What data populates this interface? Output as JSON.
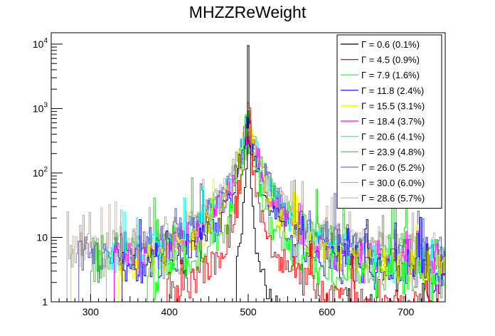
{
  "chart_data": {
    "type": "line",
    "title": "MHZZReWeight",
    "xlabel": "",
    "ylabel": "",
    "xlim": [
      250,
      750
    ],
    "ylim": [
      1,
      15000
    ],
    "yscale": "log",
    "grid": false,
    "legend_position": "top-right",
    "x_ticks": [
      300,
      400,
      500,
      600,
      700
    ],
    "x_tick_labels": [
      "300",
      "400",
      "500",
      "600",
      "700"
    ],
    "y_ticks": [
      1,
      10,
      100,
      1000,
      10000
    ],
    "y_tick_labels": [
      "1",
      "10",
      "10^2",
      "10^3",
      "10^4"
    ],
    "peak_x": 500,
    "series": [
      {
        "name": "Γ = 0.6 (0.1%)",
        "color": "#000000",
        "width": 0.6,
        "peak": 8000,
        "floor": 0.3,
        "start": 485
      },
      {
        "name": "Γ = 4.5 (0.9%)",
        "color": "#ff0000",
        "width": 4.5,
        "peak": 1300,
        "floor": 0.8,
        "start": 395
      },
      {
        "name": "Γ = 7.9 (1.6%)",
        "color": "#00ff00",
        "width": 7.9,
        "peak": 750,
        "floor": 2.0,
        "start": 372
      },
      {
        "name": "Γ = 11.8 (2.4%)",
        "color": "#0000ff",
        "width": 11.8,
        "peak": 620,
        "floor": 2.5,
        "start": 340
      },
      {
        "name": "Γ = 15.5 (3.1%)",
        "color": "#ffff00",
        "width": 15.5,
        "peak": 500,
        "floor": 3.0,
        "start": 335
      },
      {
        "name": "Γ = 18.4 (3.7%)",
        "color": "#ff00ff",
        "width": 18.4,
        "peak": 420,
        "floor": 3.0,
        "start": 330
      },
      {
        "name": "Γ = 20.6 (4.1%)",
        "color": "#00ffff",
        "width": 20.6,
        "peak": 380,
        "floor": 3.5,
        "start": 320
      },
      {
        "name": "Γ = 23.9 (4.8%)",
        "color": "#33cc33",
        "width": 23.9,
        "peak": 330,
        "floor": 4.0,
        "start": 300
      },
      {
        "name": "Γ = 26.0 (5.2%)",
        "color": "#5c5ccc",
        "width": 26.0,
        "peak": 300,
        "floor": 4.0,
        "start": 285
      },
      {
        "name": "Γ = 30.0 (6.0%)",
        "color": "#b3a8a0",
        "width": 30.0,
        "peak": 260,
        "floor": 5.0,
        "start": 270
      },
      {
        "name": "Γ = 28.6 (5.7%)",
        "color": "#c8bcb0",
        "width": 28.6,
        "peak": 280,
        "floor": 5.0,
        "start": 275
      }
    ]
  }
}
